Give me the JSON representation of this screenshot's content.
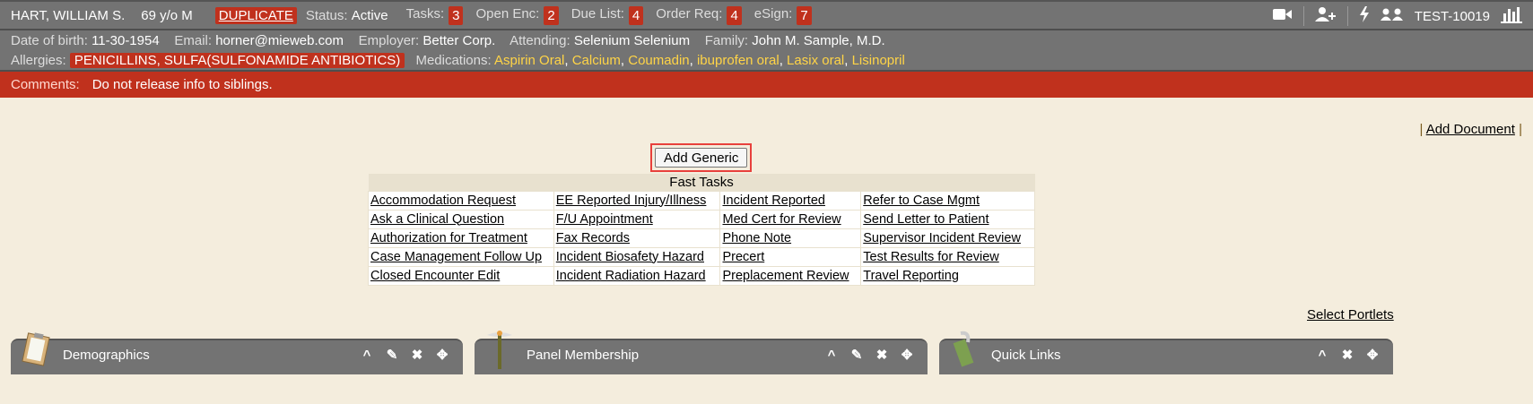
{
  "patient": {
    "name": "HART, WILLIAM S.",
    "age_sex": "69 y/o M",
    "duplicate": "DUPLICATE",
    "status_label": "Status:",
    "status": "Active",
    "counts": [
      {
        "label": "Tasks:",
        "value": "3"
      },
      {
        "label": "Open Enc:",
        "value": "2"
      },
      {
        "label": "Due List:",
        "value": "4"
      },
      {
        "label": "Order Req:",
        "value": "4"
      },
      {
        "label": "eSign:",
        "value": "7"
      }
    ],
    "id": "TEST-10019"
  },
  "details": {
    "dob_label": "Date of birth:",
    "dob": "11-30-1954",
    "email_label": "Email:",
    "email": "horner@mieweb.com",
    "employer_label": "Employer:",
    "employer": "Better Corp.",
    "attending_label": "Attending:",
    "attending": "Selenium Selenium",
    "family_label": "Family:",
    "family": "John M. Sample, M.D.",
    "allergies_label": "Allergies:",
    "allergies": "PENICILLINS, SULFA(SULFONAMIDE ANTIBIOTICS)",
    "medications_label": "Medications:",
    "medications": [
      "Aspirin Oral",
      "Calcium",
      "Coumadin",
      "ibuprofen oral",
      "Lasix oral",
      "Lisinopril"
    ]
  },
  "comments": {
    "label": "Comments:",
    "text": "Do not release info to siblings."
  },
  "add_document": "Add Document",
  "add_generic": "Add Generic",
  "fast_tasks": {
    "title": "Fast Tasks",
    "rows": [
      [
        "Accommodation Request",
        "EE Reported Injury/Illness",
        "Incident Reported",
        "Refer to Case Mgmt"
      ],
      [
        "Ask a Clinical Question",
        "F/U Appointment",
        "Med Cert for Review",
        "Send Letter to Patient"
      ],
      [
        "Authorization for Treatment",
        "Fax Records",
        "Phone Note",
        "Supervisor Incident Review"
      ],
      [
        "Case Management Follow Up",
        "Incident Biosafety Hazard",
        "Precert",
        "Test Results for Review"
      ],
      [
        "Closed Encounter Edit",
        "Incident Radiation Hazard",
        "Preplacement Review",
        "Travel Reporting"
      ]
    ]
  },
  "select_portlets": "Select Portlets",
  "portlets": [
    {
      "title": "Demographics",
      "icon": "clipboard-icon"
    },
    {
      "title": "Panel Membership",
      "icon": "caduceus-icon"
    },
    {
      "title": "Quick Links",
      "icon": "money-clip-icon"
    }
  ],
  "colors": {
    "header": "#737373",
    "alert": "#c0311d",
    "medication": "#ffd447",
    "background": "#f4eddd"
  }
}
